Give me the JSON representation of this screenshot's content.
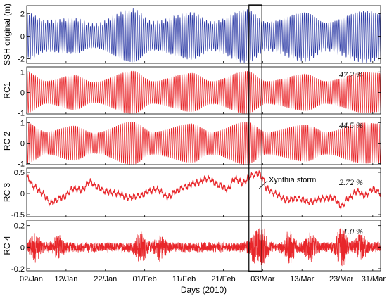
{
  "chart_data": {
    "type": "line",
    "x_axis": {
      "label": "Days (2010)",
      "start_day": 0,
      "end_day": 90,
      "tick_labels": [
        "02/Jan",
        "12/Jan",
        "22/Jan",
        "01/Feb",
        "11/Feb",
        "21/Feb",
        "03/Mar",
        "13/Mar",
        "23/Mar",
        "31/Mar"
      ],
      "tick_days": [
        0,
        10,
        20,
        30,
        40,
        50,
        60,
        70,
        80,
        88
      ]
    },
    "panels": [
      {
        "id": "ssh",
        "ylabel": "SSH original (m)",
        "color": "#3340a8",
        "ylim": [
          -2.4,
          2.7
        ],
        "yticks": [
          -2,
          0,
          2
        ],
        "ytick_labels": [
          "-2",
          "0",
          "2"
        ],
        "percent_label": "",
        "series": {
          "kind": "tide",
          "envelope_days": [
            0,
            5,
            12,
            17,
            27,
            32,
            42,
            47,
            56,
            61,
            71,
            76,
            86,
            90
          ],
          "envelope_amp": [
            2.0,
            1.3,
            1.5,
            1.0,
            2.3,
            1.2,
            2.0,
            1.2,
            2.3,
            1.2,
            2.1,
            1.2,
            2.2,
            2.0
          ],
          "cycles_per_day": 1.93,
          "offset": 0.15
        }
      },
      {
        "id": "rc1",
        "ylabel": "RC1",
        "color": "#e8262a",
        "ylim": [
          -1.05,
          1.25
        ],
        "yticks": [
          -1,
          0,
          1
        ],
        "ytick_labels": [
          "-1",
          "0",
          "1"
        ],
        "percent_label": "47.2 %",
        "series": {
          "kind": "tide",
          "envelope_days": [
            0,
            5,
            12,
            17,
            27,
            32,
            42,
            47,
            56,
            61,
            71,
            76,
            86,
            90
          ],
          "envelope_amp": [
            1.0,
            0.55,
            0.85,
            0.5,
            1.05,
            0.55,
            0.95,
            0.55,
            1.05,
            0.55,
            0.9,
            0.55,
            1.0,
            0.95
          ],
          "cycles_per_day": 1.93,
          "offset": 0.0
        }
      },
      {
        "id": "rc2",
        "ylabel": "RC 2",
        "color": "#e8262a",
        "ylim": [
          -1.05,
          1.25
        ],
        "yticks": [
          -1,
          0,
          1
        ],
        "ytick_labels": [
          "-1",
          "0",
          "1"
        ],
        "percent_label": "44.5 %",
        "series": {
          "kind": "tide",
          "envelope_days": [
            0,
            5,
            12,
            17,
            27,
            32,
            42,
            47,
            56,
            61,
            71,
            76,
            86,
            90
          ],
          "envelope_amp": [
            1.0,
            0.55,
            0.85,
            0.5,
            1.05,
            0.55,
            0.95,
            0.55,
            1.05,
            0.55,
            0.9,
            0.55,
            1.0,
            0.95
          ],
          "cycles_per_day": 1.93,
          "offset": 0.0,
          "phase": 1.5708
        }
      },
      {
        "id": "rc3",
        "ylabel": "RC 3",
        "color": "#e8262a",
        "ylim": [
          -0.55,
          0.6
        ],
        "yticks": [
          -0.5,
          0,
          0.5
        ],
        "ytick_labels": [
          "-0.5",
          "0",
          "0.5"
        ],
        "percent_label": "2.72 %",
        "series": {
          "kind": "smooth",
          "base_days": [
            0,
            2,
            4,
            6,
            9,
            12,
            14,
            16,
            18,
            20,
            23,
            26,
            29,
            31,
            33,
            36,
            38,
            40,
            43,
            46,
            49,
            51,
            53,
            55,
            57,
            59,
            60,
            61,
            63,
            66,
            69,
            72,
            75,
            78,
            80,
            82,
            84,
            86,
            88,
            90
          ],
          "base_vals": [
            0.38,
            0.15,
            0.0,
            -0.22,
            -0.1,
            0.12,
            0.08,
            0.28,
            0.15,
            0.05,
            0.0,
            -0.1,
            -0.05,
            0.05,
            0.1,
            -0.08,
            0.05,
            0.15,
            0.25,
            0.35,
            0.2,
            0.1,
            0.35,
            0.25,
            0.42,
            0.48,
            0.35,
            0.12,
            0.0,
            -0.15,
            -0.12,
            -0.2,
            -0.12,
            -0.1,
            -0.3,
            -0.1,
            0.05,
            -0.05,
            0.1,
            0.0
          ],
          "ripple_amp": 0.05,
          "cycles_per_day": 1.0
        }
      },
      {
        "id": "rc4",
        "ylabel": "RC 4",
        "color": "#e8262a",
        "ylim": [
          -0.22,
          0.25
        ],
        "yticks": [
          -0.2,
          0,
          0.2
        ],
        "ytick_labels": [
          "-0.2",
          "0",
          "0.2"
        ],
        "percent_label": "1.0 %",
        "series": {
          "kind": "noise",
          "base_amp": 0.05,
          "burst_days": [
            2,
            8,
            29,
            34,
            58,
            60,
            67,
            72,
            80,
            85
          ],
          "burst_amp": [
            0.1,
            0.08,
            0.12,
            0.09,
            0.1,
            0.14,
            0.13,
            0.11,
            0.16,
            0.1
          ]
        }
      }
    ],
    "highlight": {
      "start_day": 56.5,
      "end_day": 59.8,
      "annotation": "Xynthia storm"
    }
  }
}
